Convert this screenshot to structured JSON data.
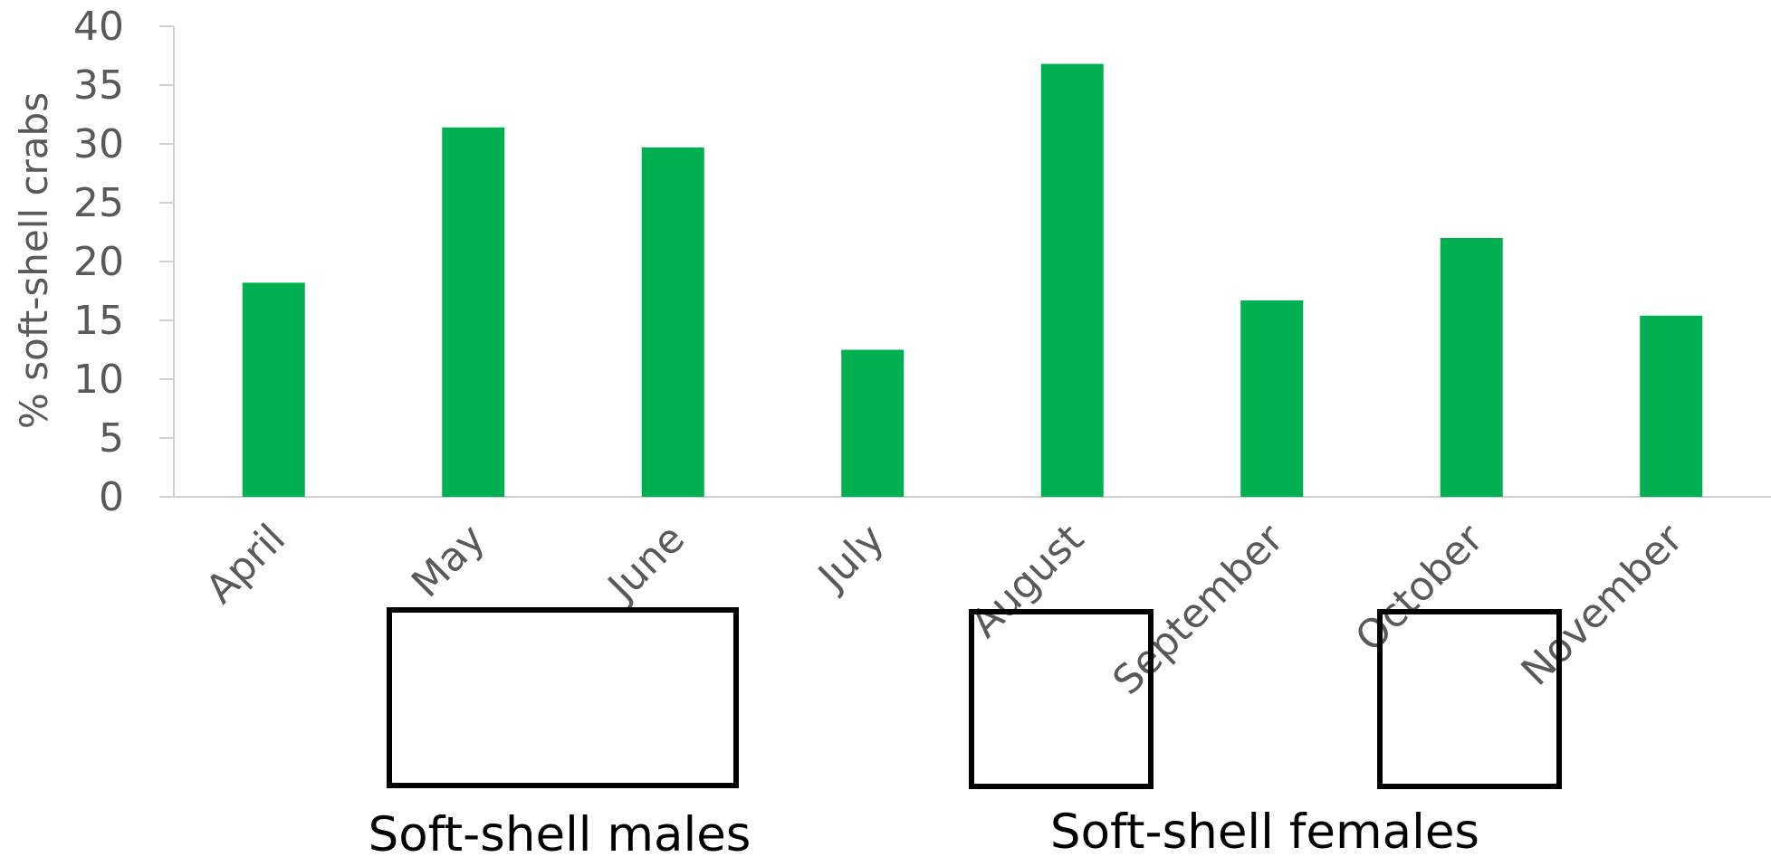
{
  "chart_data": {
    "type": "bar",
    "categories": [
      "April",
      "May",
      "June",
      "July",
      "August",
      "September",
      "October",
      "November"
    ],
    "values": [
      18.2,
      31.4,
      29.7,
      12.5,
      36.8,
      16.7,
      22.0,
      15.4
    ],
    "xlabel": "",
    "ylabel": "% soft-shell crabs",
    "ylim": [
      0,
      40
    ],
    "yticks": [
      0,
      5,
      10,
      15,
      20,
      25,
      30,
      35,
      40
    ],
    "grid": false,
    "bar_color": "#00B050",
    "annotations": [
      {
        "label": "Soft-shell males",
        "months": [
          "May",
          "June"
        ]
      },
      {
        "label": "Soft-shell females",
        "months": [
          "August"
        ]
      },
      {
        "label": "",
        "months": [
          "October"
        ]
      }
    ]
  }
}
